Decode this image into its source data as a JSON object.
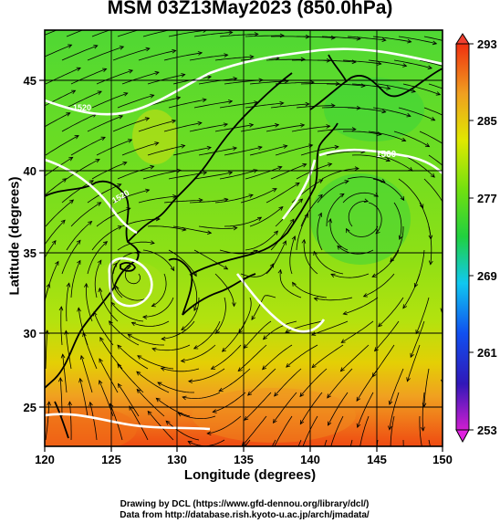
{
  "title": "MSM 03Z13May2023 (850.0hPa)",
  "xlabel": "Longitude (degrees)",
  "ylabel": "Latitude  (degrees)",
  "credit_line1": "Drawing by DCL (https://www.gfd-dennou.org/library/dcl/)",
  "credit_line2": "Data from http://database.rish.kyoto-u.ac.jp/arch/jmadata/",
  "x_ticks": [
    "120",
    "125",
    "130",
    "135",
    "140",
    "145",
    "150"
  ],
  "y_ticks": [
    "45",
    "40",
    "35",
    "30",
    "25"
  ],
  "colorbar_ticks": [
    "293",
    "285",
    "277",
    "269",
    "261",
    "253"
  ],
  "contour_labels": [
    "1520",
    "1520",
    "1560"
  ],
  "map": {
    "lon_range": [
      120,
      150
    ],
    "lat_range": [
      22.4,
      47.6
    ],
    "field": "temperature (K) with streamlines and geopotential height contours",
    "colorbar_range": [
      253,
      293
    ],
    "colormap": [
      "#e01fe0",
      "#1010c0",
      "#1090f0",
      "#10e0e0",
      "#20d020",
      "#8ce010",
      "#e8e800",
      "#f0a020",
      "#f04010"
    ]
  }
}
